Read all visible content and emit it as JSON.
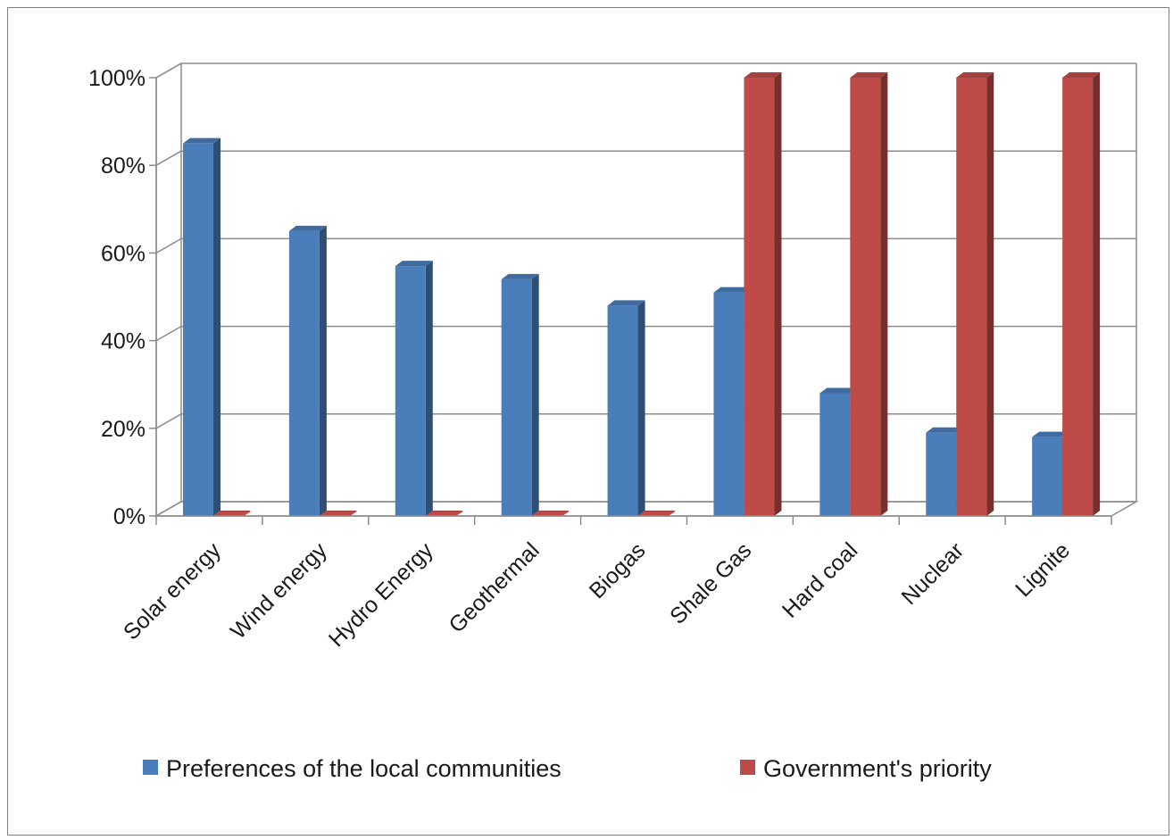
{
  "chart_data": {
    "type": "bar",
    "title": "",
    "xlabel": "",
    "ylabel": "",
    "ylim": [
      0,
      100
    ],
    "yticks": [
      0,
      20,
      40,
      60,
      80,
      100
    ],
    "ytick_labels": [
      "0%",
      "20%",
      "40%",
      "60%",
      "80%",
      "100%"
    ],
    "categories": [
      "Solar energy",
      "Wind energy",
      "Hydro Energy",
      "Geothermal",
      "Biogas",
      "Shale Gas",
      "Hard coal",
      "Nuclear",
      "Lignite"
    ],
    "series": [
      {
        "name": "Preferences of the local communities",
        "color": "#4a7ebb",
        "values": [
          85,
          65,
          57,
          54,
          48,
          51,
          28,
          19,
          18
        ]
      },
      {
        "name": "Government's priority",
        "color": "#be4b48",
        "values": [
          0,
          0,
          0,
          0,
          0,
          100,
          100,
          100,
          100
        ]
      }
    ],
    "grid": true,
    "legend_position": "bottom",
    "style": "3d-clustered-column"
  }
}
